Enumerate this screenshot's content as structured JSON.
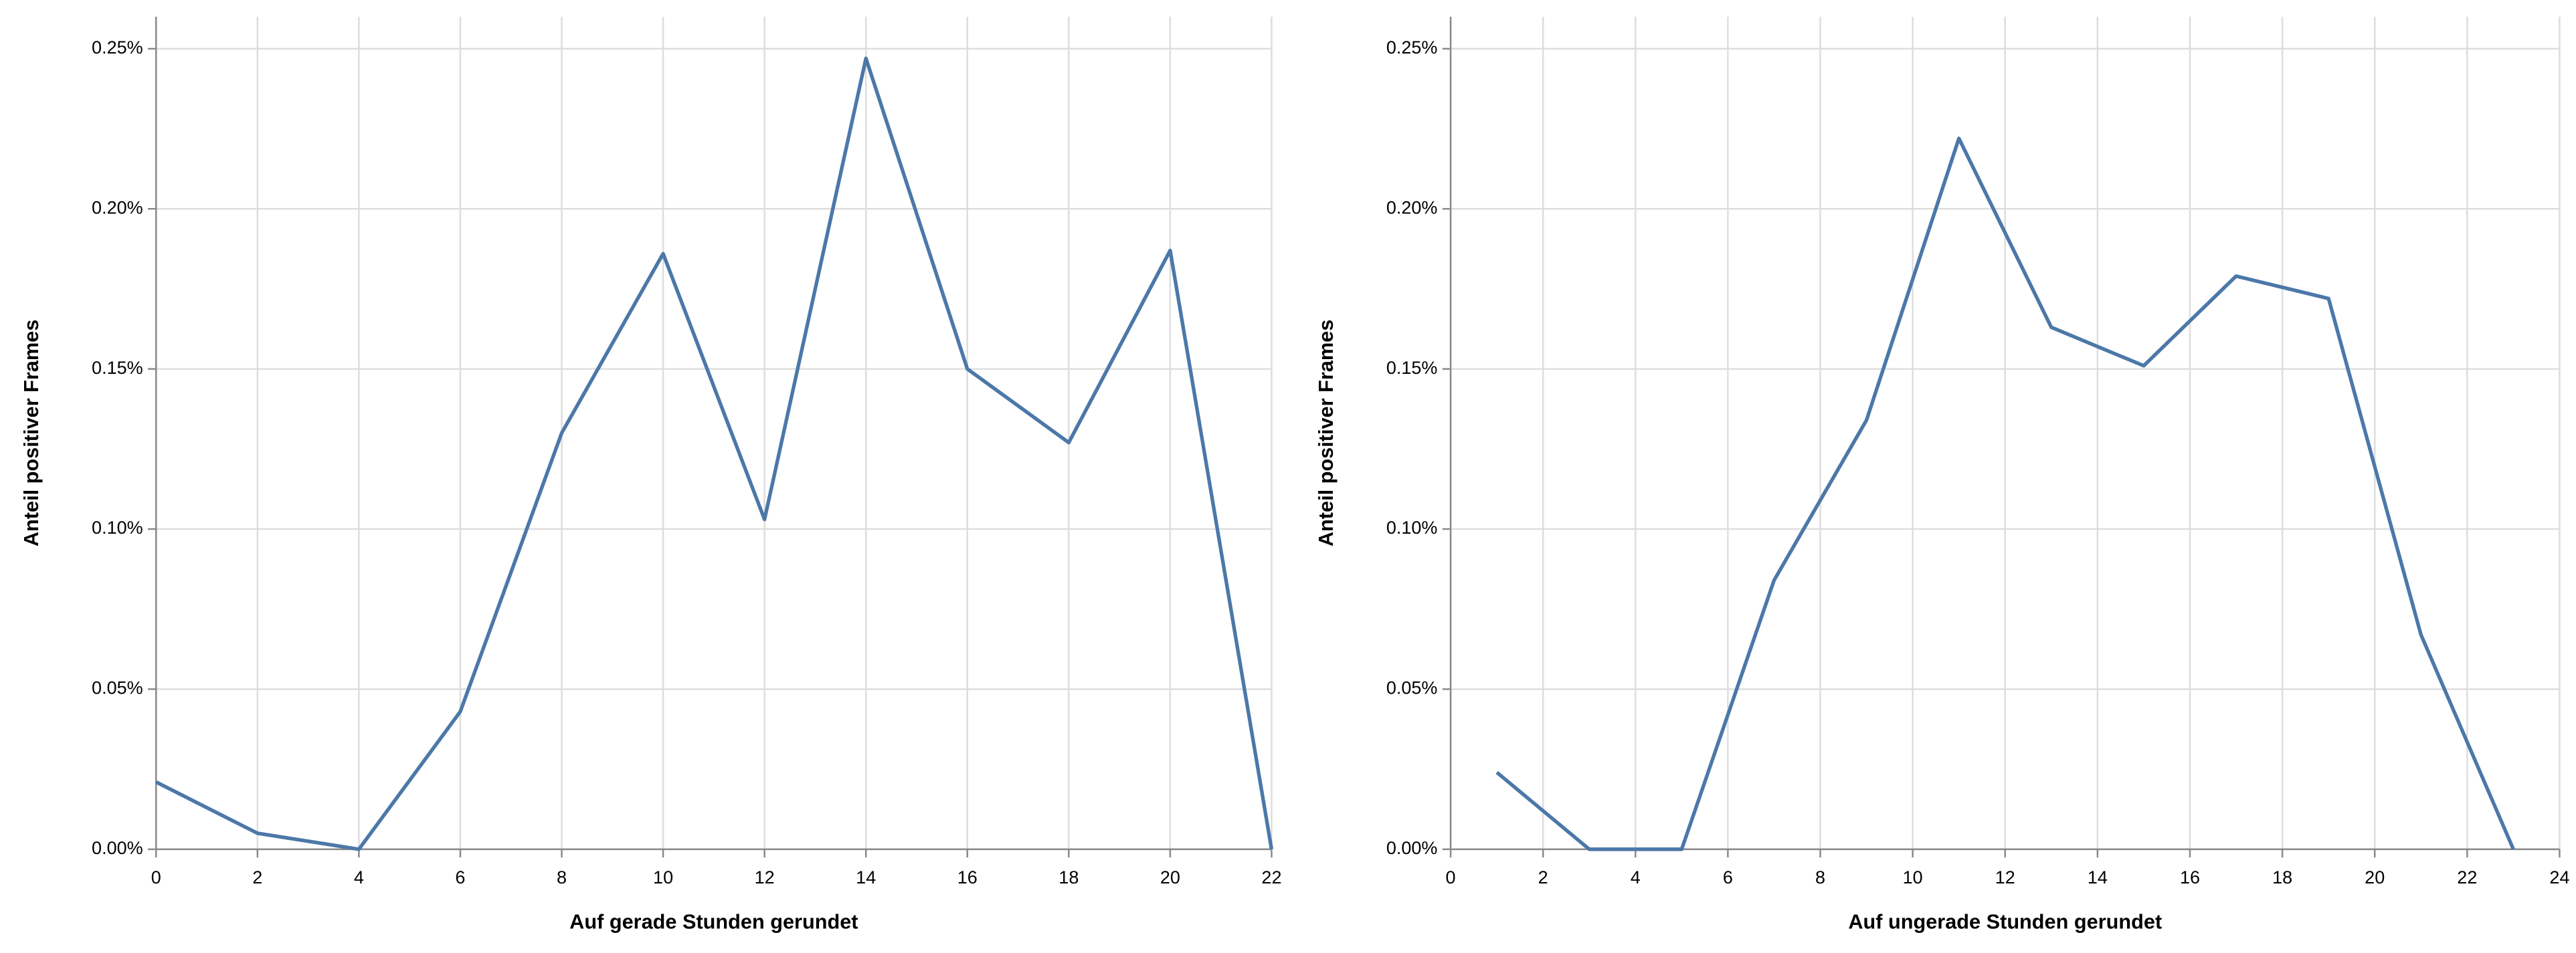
{
  "chart_data": [
    {
      "type": "line",
      "x_label": "Auf gerade Stunden gerundet",
      "y_label": "Anteil positiver Frames",
      "x": [
        0,
        2,
        4,
        6,
        8,
        10,
        12,
        14,
        16,
        18,
        20,
        22
      ],
      "series": [
        {
          "color": "#4c78a8",
          "values": [
            0.021,
            0.005,
            0.0,
            0.043,
            0.13,
            0.186,
            0.103,
            0.247,
            0.15,
            0.127,
            0.187,
            0.0
          ]
        }
      ],
      "xlim": [
        0,
        22
      ],
      "xticks": [
        0,
        2,
        4,
        6,
        8,
        10,
        12,
        14,
        16,
        18,
        20,
        22
      ],
      "ylim": [
        0,
        0.26
      ],
      "yticks": [
        {
          "value": 0,
          "label": "0.00%"
        },
        {
          "value": 0.05,
          "label": "0.05%"
        },
        {
          "value": 0.1,
          "label": "0.10%"
        },
        {
          "value": 0.15,
          "label": "0.15%"
        },
        {
          "value": 0.2,
          "label": "0.20%"
        },
        {
          "value": 0.25,
          "label": "0.25%"
        }
      ],
      "grid": true
    },
    {
      "type": "line",
      "x_label": "Auf ungerade Stunden gerundet",
      "y_label": "Anteil positiver Frames",
      "x": [
        1,
        3,
        5,
        7,
        9,
        11,
        13,
        15,
        17,
        19,
        21,
        23
      ],
      "series": [
        {
          "color": "#4c78a8",
          "values": [
            0.024,
            0.0,
            0.0,
            0.084,
            0.134,
            0.222,
            0.163,
            0.151,
            0.179,
            0.172,
            0.067,
            0.0
          ]
        }
      ],
      "xlim": [
        0,
        24
      ],
      "xticks": [
        0,
        2,
        4,
        6,
        8,
        10,
        12,
        14,
        16,
        18,
        20,
        22,
        24
      ],
      "ylim": [
        0,
        0.26
      ],
      "yticks": [
        {
          "value": 0,
          "label": "0.00%"
        },
        {
          "value": 0.05,
          "label": "0.05%"
        },
        {
          "value": 0.1,
          "label": "0.10%"
        },
        {
          "value": 0.15,
          "label": "0.15%"
        },
        {
          "value": 0.2,
          "label": "0.20%"
        },
        {
          "value": 0.25,
          "label": "0.25%"
        }
      ],
      "grid": true
    }
  ]
}
